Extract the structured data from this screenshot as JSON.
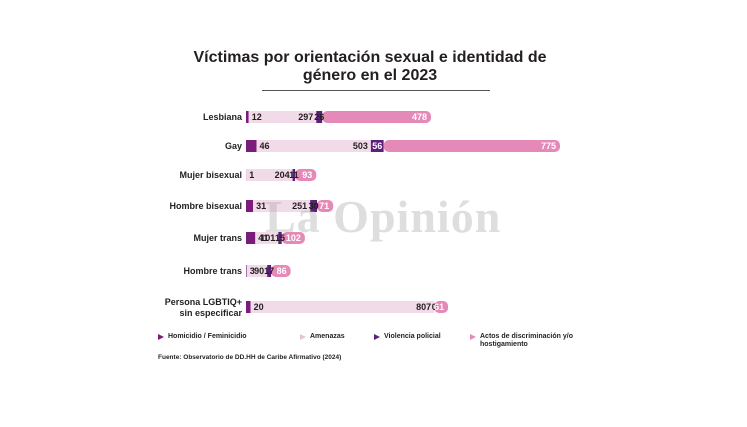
{
  "title": "Víctimas por orientación sexual e identidad de género en el 2023",
  "watermark": "La Opinión",
  "source": "Fuente: Observatorio de DD.HH de Caribe Afirmativo (2024)",
  "colors": {
    "homicidio": "#7b1c7c",
    "amenazas": "#f1dbe9",
    "violencia": "#5c1f7a",
    "actos": "#e58ab8",
    "text_dark": "#231f20"
  },
  "chart_data": {
    "type": "bar",
    "stacked": true,
    "orientation": "horizontal",
    "title": "Víctimas por orientación sexual e identidad de género en el 2023",
    "categories": [
      "Lesbiana",
      "Gay",
      "Mujer bisexual",
      "Hombre bisexual",
      "Mujer trans",
      "Hombre trans",
      "Persona LGBTIQ+ sin especificar"
    ],
    "series": [
      {
        "name": "Homicidio / Feminicidio",
        "values": [
          12,
          46,
          1,
          31,
          41,
          3,
          20
        ]
      },
      {
        "name": "Amenazas",
        "values": [
          297,
          503,
          204,
          251,
          101,
          90,
          807
        ]
      },
      {
        "name": "Violencia policial",
        "values": [
          26,
          56,
          11,
          30,
          15,
          17,
          0
        ]
      },
      {
        "name": "Actos de discriminación y/o hostigamiento",
        "values": [
          478,
          775,
          93,
          71,
          102,
          86,
          61
        ]
      }
    ],
    "legend_position": "bottom",
    "grid": false
  }
}
